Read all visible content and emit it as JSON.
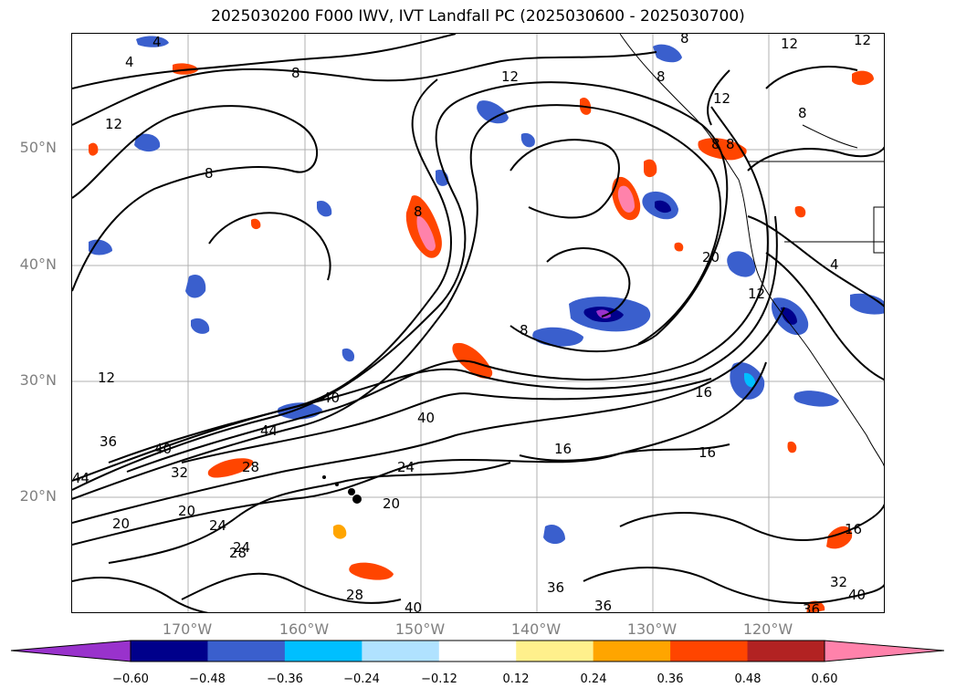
{
  "title": "2025030200 F000 IWV, IVT Landfall PC (2025030600 - 2025030700)",
  "axes": {
    "lat_labels": [
      "50°N",
      "40°N",
      "30°N",
      "20°N"
    ],
    "lon_labels": [
      "170°W",
      "160°W",
      "150°W",
      "140°W",
      "130°W",
      "120°W"
    ]
  },
  "colorbar": {
    "ticks": [
      "−0.60",
      "−0.48",
      "−0.36",
      "−0.24",
      "−0.12",
      "0.12",
      "0.24",
      "0.36",
      "0.48",
      "0.60"
    ],
    "colors": [
      "#9932cc",
      "#00008b",
      "#3a5fcd",
      "#00bfff",
      "#b0e2ff",
      "#ffffff",
      "#fff08c",
      "#ffa500",
      "#ff4500",
      "#b22222",
      "#ff82ab"
    ]
  },
  "contour_labels": [
    "4",
    "4",
    "8",
    "12",
    "12",
    "12",
    "8",
    "8",
    "12",
    "8",
    "8",
    "8",
    "12",
    "8",
    "4",
    "20",
    "12",
    "16",
    "16",
    "24",
    "40",
    "40",
    "44",
    "36",
    "40",
    "44",
    "32",
    "28",
    "20",
    "24",
    "20",
    "20",
    "24",
    "28",
    "28",
    "36",
    "36",
    "16",
    "32",
    "40",
    "36",
    "16",
    "12",
    "8",
    "8",
    "40"
  ],
  "chart_data": {
    "type": "contour map",
    "variable_contours": "IWV",
    "variable_shading": "IVT Landfall PC",
    "init": "2025030200",
    "forecast_hour": "F000",
    "valid_range": "2025030600 - 2025030700",
    "lat_range": [
      10,
      60
    ],
    "lon_range": [
      -180,
      -110
    ],
    "grid": true
  }
}
